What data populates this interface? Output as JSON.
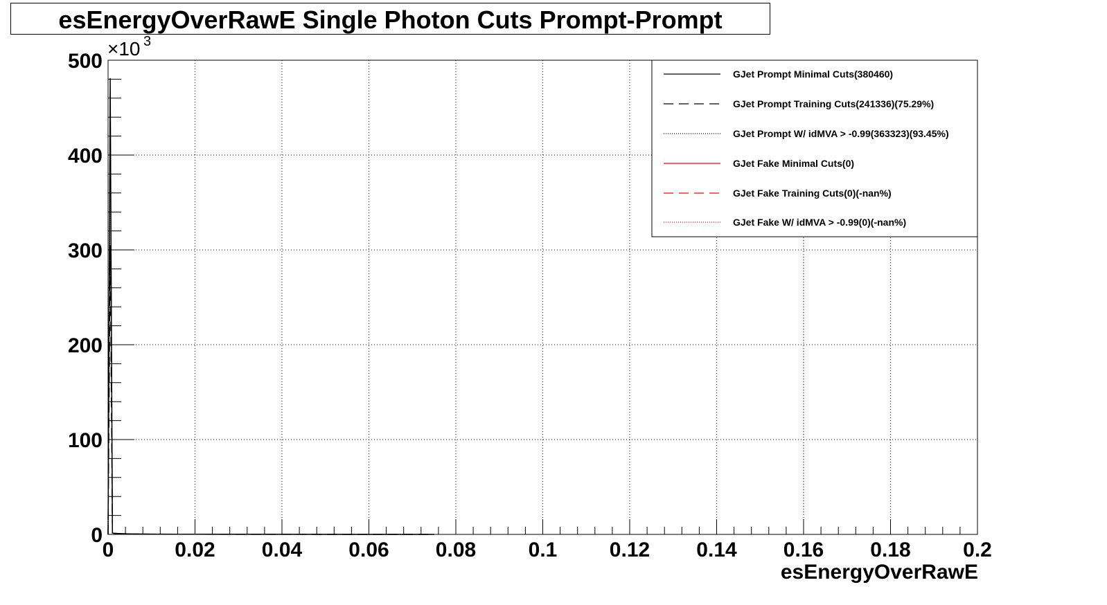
{
  "chart_data": {
    "type": "line",
    "title": "esEnergyOverRawE Single Photon Cuts Prompt-Prompt",
    "xlabel": "esEnergyOverRawE",
    "ylabel": "",
    "xlim": [
      0,
      0.2
    ],
    "ylim": [
      0,
      500000
    ],
    "y_multiplier_label": "×10",
    "y_multiplier_exp": "3",
    "x_ticks": [
      "0",
      "0.02",
      "0.04",
      "0.06",
      "0.08",
      "0.1",
      "0.12",
      "0.14",
      "0.16",
      "0.18",
      "0.2"
    ],
    "x_tick_values": [
      0,
      0.02,
      0.04,
      0.06,
      0.08,
      0.1,
      0.12,
      0.14,
      0.16,
      0.18,
      0.2
    ],
    "y_ticks": [
      "0",
      "100",
      "200",
      "300",
      "400",
      "500"
    ],
    "y_tick_values": [
      0,
      100000,
      200000,
      300000,
      400000,
      500000
    ],
    "grid": true,
    "legend_position": "top-right",
    "series": [
      {
        "name": "GJet Prompt Minimal Cuts(380460)",
        "color": "#000000",
        "dash": "solid",
        "x": [
          0,
          0.0005,
          0.001,
          0.0015,
          0.002,
          0.003,
          0.005,
          0.01,
          0.02,
          0.04,
          0.06,
          0.075
        ],
        "y": [
          0,
          481000,
          1400,
          1200,
          1000,
          800,
          500,
          300,
          150,
          60,
          30,
          0
        ]
      },
      {
        "name": "GJet Prompt Training Cuts(241336)(75.29%)",
        "color": "#000000",
        "dash": "long-dash",
        "x": [
          0,
          0.0005,
          0.001,
          0.0015,
          0.002,
          0.003,
          0.005,
          0.01,
          0.02,
          0.04,
          0.06,
          0.075
        ],
        "y": [
          0,
          305000,
          1100,
          900,
          800,
          600,
          400,
          250,
          120,
          50,
          20,
          0
        ]
      },
      {
        "name": "GJet Prompt W/ idMVA > -0.99(363323)(93.45%)",
        "color": "#000000",
        "dash": "dotted",
        "x": [
          0,
          0.0005,
          0.001,
          0.0015,
          0.002,
          0.003,
          0.005,
          0.01,
          0.02,
          0.04,
          0.06,
          0.075
        ],
        "y": [
          0,
          459000,
          1300,
          1100,
          950,
          750,
          480,
          290,
          140,
          55,
          25,
          0
        ]
      },
      {
        "name": "GJet Fake Minimal Cuts(0)",
        "color": "#ff0000",
        "dash": "solid",
        "x": [],
        "y": []
      },
      {
        "name": "GJet Fake Training Cuts(0)(-nan%)",
        "color": "#ff0000",
        "dash": "long-dash",
        "x": [],
        "y": []
      },
      {
        "name": "GJet Fake W/ idMVA > -0.99(0)(-nan%)",
        "color": "#ff0000",
        "dash": "dotted",
        "x": [],
        "y": []
      }
    ]
  }
}
